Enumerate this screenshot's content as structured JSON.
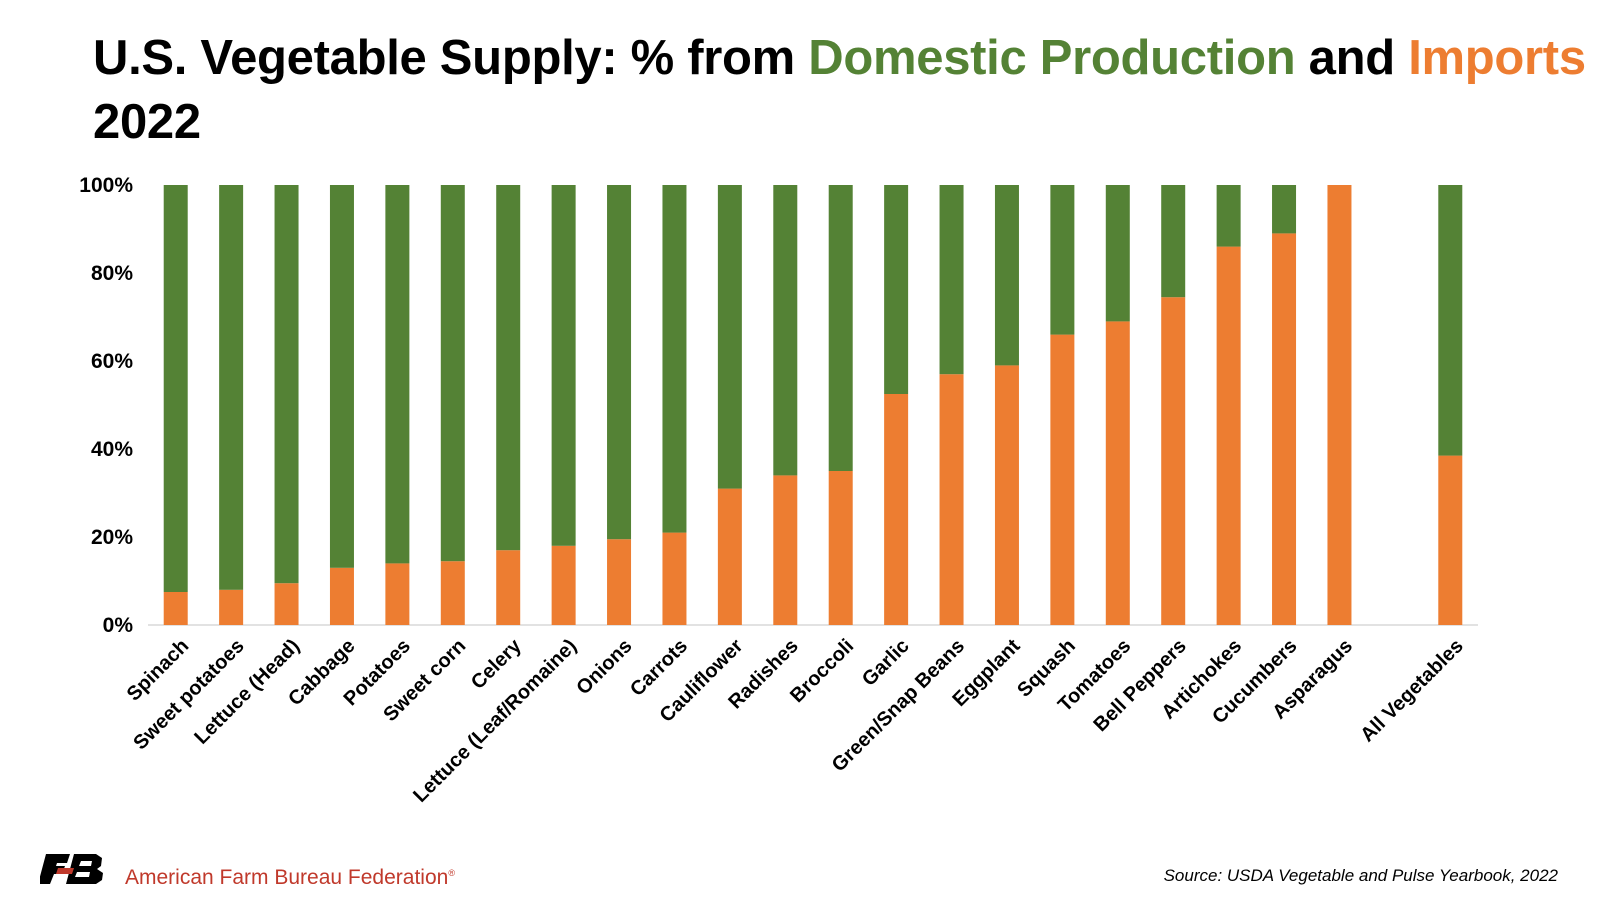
{
  "header": {
    "title_prefix": "U.S. Vegetable Supply: % from ",
    "title_domestic": "Domestic Production",
    "title_and": " and ",
    "title_imports": "Imports",
    "title_year": "2022"
  },
  "footer": {
    "org_name": "American Farm Bureau Federation",
    "trademark": "®",
    "source": "Source: USDA Vegetable and Pulse Yearbook, 2022"
  },
  "colors": {
    "domestic": "#548235",
    "imports": "#ED7D31",
    "brand_red": "#C0392B",
    "brand_black": "#000000"
  },
  "chart_data": {
    "type": "bar",
    "stacked": true,
    "percent_stacked": true,
    "categories": [
      "Spinach",
      "Sweet potatoes",
      "Lettuce (Head)",
      "Cabbage",
      "Potatoes",
      "Sweet corn",
      "Celery",
      "Lettuce (Leaf/Romaine)",
      "Onions",
      "Carrots",
      "Cauliflower",
      "Radishes",
      "Broccoli",
      "Garlic",
      "Green/Snap Beans",
      "Eggplant",
      "Squash",
      "Tomatoes",
      "Bell Peppers",
      "Artichokes",
      "Cucumbers",
      "Asparagus",
      "",
      "All Vegetables"
    ],
    "series": [
      {
        "name": "Imports",
        "color": "#ED7D31",
        "values": [
          7.5,
          8,
          9.5,
          13,
          14,
          14.5,
          17,
          18,
          19.5,
          21,
          31,
          34,
          35,
          52.5,
          57,
          59,
          66,
          69,
          74.5,
          86,
          89,
          100,
          null,
          38.5
        ]
      },
      {
        "name": "Domestic Production",
        "color": "#548235",
        "values": [
          92.5,
          92,
          90.5,
          87,
          86,
          85.5,
          83,
          82,
          80.5,
          79,
          69,
          66,
          65,
          47.5,
          43,
          41,
          34,
          31,
          25.5,
          14,
          11,
          0,
          null,
          61.5
        ]
      }
    ],
    "yticks": [
      "0%",
      "20%",
      "40%",
      "60%",
      "80%",
      "100%"
    ],
    "ylim": [
      0,
      100
    ],
    "grid": false,
    "legend": "none"
  }
}
